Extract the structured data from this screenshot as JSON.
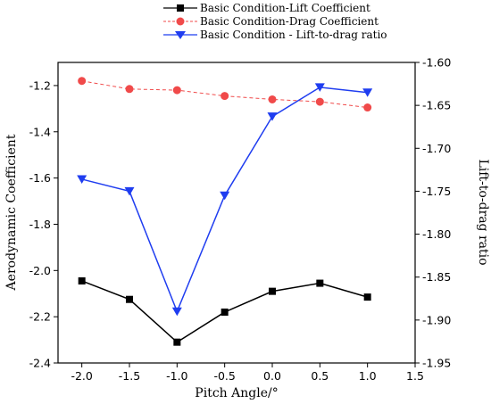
{
  "chart_data": {
    "type": "line",
    "title": "",
    "xlabel": "Pitch Angle/°",
    "ylabel_left": "Aerodynamic Coefficient",
    "ylabel_right": "Lift-to-drag ratio",
    "xlim": [
      -2.25,
      1.5
    ],
    "ylim_left": [
      -2.4,
      -1.1
    ],
    "ylim_right": [
      -1.95,
      -1.6
    ],
    "x_ticks": [
      "-2.0",
      "-1.5",
      "-1.0",
      "-0.5",
      "0.0",
      "0.5",
      "1.0",
      "1.5"
    ],
    "y_left_ticks": [
      "-1.2",
      "-1.4",
      "-1.6",
      "-1.8",
      "-2.0",
      "-2.2",
      "-2.4"
    ],
    "y_right_ticks": [
      "-1.60",
      "-1.65",
      "-1.70",
      "-1.75",
      "-1.80",
      "-1.85",
      "-1.90",
      "-1.95"
    ],
    "grid": false,
    "legend_position": "top-center",
    "series": [
      {
        "name": "Basic Condition-Lift Coefficient",
        "axis": "left",
        "color": "#000000",
        "marker": "square",
        "x": [
          -2.0,
          -1.5,
          -1.0,
          -0.5,
          0.0,
          0.5,
          1.0
        ],
        "values": [
          -2.045,
          -2.125,
          -2.31,
          -2.18,
          -2.09,
          -2.055,
          -2.115
        ]
      },
      {
        "name": "Basic Condition-Drag Coefficient",
        "axis": "left",
        "color": "#f04a4a",
        "marker": "circle",
        "dashed": true,
        "x": [
          -2.0,
          -1.5,
          -1.0,
          -0.5,
          0.0,
          0.5,
          1.0
        ],
        "values": [
          -1.18,
          -1.215,
          -1.22,
          -1.245,
          -1.26,
          -1.27,
          -1.295
        ]
      },
      {
        "name": "Basic Condition - Lift-to-drag ratio",
        "axis": "right",
        "color": "#1f3df0",
        "marker": "triangle-down",
        "x": [
          -2.0,
          -1.5,
          -1.0,
          -0.5,
          0.0,
          0.5,
          1.0
        ],
        "values": [
          -1.736,
          -1.75,
          -1.89,
          -1.755,
          -1.663,
          -1.629,
          -1.635
        ]
      }
    ]
  }
}
